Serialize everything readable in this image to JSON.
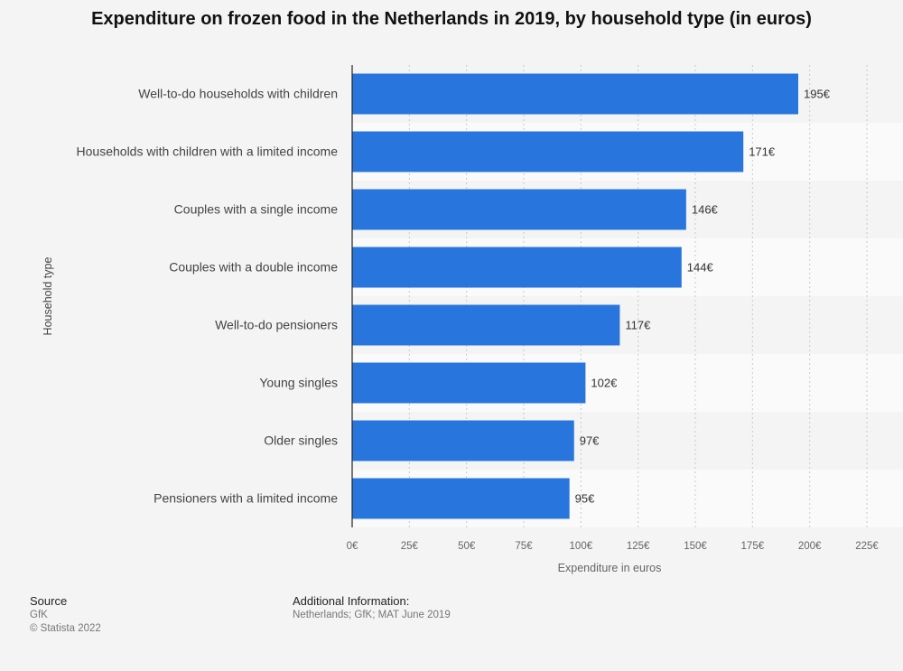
{
  "title": "Expenditure on frozen food in the Netherlands in 2019, by household type (in euros)",
  "chart_data": {
    "type": "bar",
    "orientation": "horizontal",
    "categories": [
      "Well-to-do households with children",
      "Households with children with a limited income",
      "Couples with a single income",
      "Couples with a double income",
      "Well-to-do pensioners",
      "Young singles",
      "Older singles",
      "Pensioners with a limited income"
    ],
    "values": [
      195,
      171,
      146,
      144,
      117,
      102,
      97,
      95
    ],
    "value_labels": [
      "195€",
      "171€",
      "146€",
      "144€",
      "117€",
      "102€",
      "97€",
      "95€"
    ],
    "xlabel": "Expenditure in euros",
    "ylabel": "Household type",
    "xlim": [
      0,
      225
    ],
    "x_ticks": [
      0,
      25,
      50,
      75,
      100,
      125,
      150,
      175,
      200,
      225
    ],
    "x_tick_labels": [
      "0€",
      "25€",
      "50€",
      "75€",
      "100€",
      "125€",
      "150€",
      "175€",
      "200€",
      "225€"
    ],
    "grid": true,
    "bar_color": "#2876dd"
  },
  "footer": {
    "source_heading": "Source",
    "source_lines": [
      "GfK",
      "© Statista 2022"
    ],
    "additional_heading": "Additional Information:",
    "additional_text": "Netherlands; GfK; MAT June 2019"
  }
}
